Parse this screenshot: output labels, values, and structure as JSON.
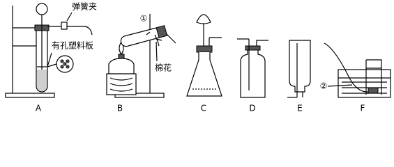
{
  "labels": {
    "spring_clip": "弹簧夹",
    "perforated_plate": "有孔塑料板",
    "cotton": "棉花",
    "marker_1": "①",
    "marker_2": "②"
  },
  "apparatus": [
    {
      "letter": "A"
    },
    {
      "letter": "B"
    },
    {
      "letter": "C"
    },
    {
      "letter": "D"
    },
    {
      "letter": "E"
    },
    {
      "letter": "F"
    }
  ]
}
